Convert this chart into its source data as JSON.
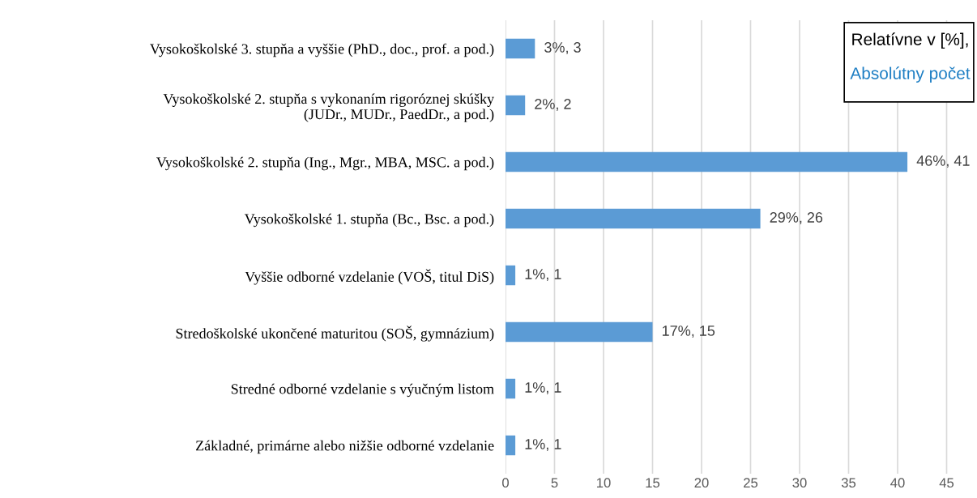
{
  "chart_data": {
    "type": "bar",
    "orientation": "horizontal",
    "categories": [
      "Vysokoškolské 3. stupňa a vyššie (PhD., doc., prof. a pod.)",
      "Vysokoškolské 2. stupňa s vykonaním rigoróznej skúšky\n(JUDr., MUDr., PaedDr., a pod.)",
      "Vysokoškolské 2. stupňa (Ing., Mgr., MBA, MSC. a pod.)",
      "Vysokoškolské 1. stupňa (Bc., Bsc. a pod.)",
      "Vyššie odborné vzdelanie (VOŠ, titul DiS)",
      "Stredoškolské ukončené maturitou (SOŠ, gymnázium)",
      "Stredné odborné vzdelanie s výučným listom",
      "Základné, primárne alebo nižšie odborné vzdelanie"
    ],
    "values": [
      3,
      2,
      41,
      26,
      1,
      15,
      1,
      1
    ],
    "color": "#5b9bd5",
    "value_labels": [
      "3%, 3",
      "2%, 2",
      "46%, 41",
      "29%, 26",
      "1%, 1",
      "17%, 15",
      "1%, 1",
      "1%, 1"
    ],
    "xlim": [
      0,
      48
    ],
    "xticks": [
      0,
      5,
      10,
      15,
      20,
      25,
      30,
      35,
      40,
      45
    ],
    "grid": "x",
    "annotations": [
      "Relatívne v [%],",
      "Absolútny počet"
    ]
  }
}
